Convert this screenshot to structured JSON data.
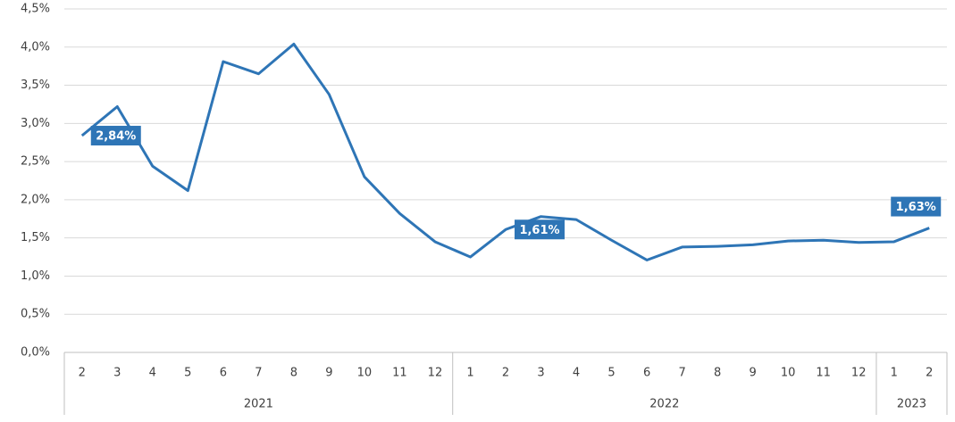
{
  "chart_data": {
    "type": "line",
    "groups": [
      {
        "name": "2021",
        "categories": [
          "2",
          "3",
          "4",
          "5",
          "6",
          "7",
          "8",
          "9",
          "10",
          "11",
          "12"
        ]
      },
      {
        "name": "2022",
        "categories": [
          "1",
          "2",
          "3",
          "4",
          "5",
          "6",
          "7",
          "8",
          "9",
          "10",
          "11",
          "12"
        ]
      },
      {
        "name": "2023",
        "categories": [
          "1",
          "2"
        ]
      }
    ],
    "color": "#2e75b6",
    "values": [
      2.84,
      3.22,
      2.44,
      2.12,
      3.81,
      3.65,
      4.04,
      3.38,
      2.3,
      1.82,
      1.45,
      1.25,
      1.61,
      1.78,
      1.74,
      1.47,
      1.21,
      1.38,
      1.39,
      1.41,
      1.46,
      1.47,
      1.44,
      1.45,
      1.63
    ],
    "value_labels": [
      "2,84%",
      null,
      null,
      null,
      null,
      null,
      null,
      null,
      null,
      null,
      null,
      null,
      "1,61%",
      null,
      null,
      null,
      null,
      null,
      null,
      null,
      null,
      null,
      null,
      null,
      "1,63%"
    ],
    "ylim": [
      0,
      4.5
    ],
    "yticks": [
      {
        "value": 0,
        "label": "0,0%"
      },
      {
        "value": 0.5,
        "label": "0,5%"
      },
      {
        "value": 1,
        "label": "1,0%"
      },
      {
        "value": 1.5,
        "label": "1,5%"
      },
      {
        "value": 2,
        "label": "2,0%"
      },
      {
        "value": 2.5,
        "label": "2,5%"
      },
      {
        "value": 3,
        "label": "3,0%"
      },
      {
        "value": 3.5,
        "label": "3,5%"
      },
      {
        "value": 4,
        "label": "4,0%"
      },
      {
        "value": 4.5,
        "label": "4,5%"
      }
    ],
    "grid": true
  }
}
